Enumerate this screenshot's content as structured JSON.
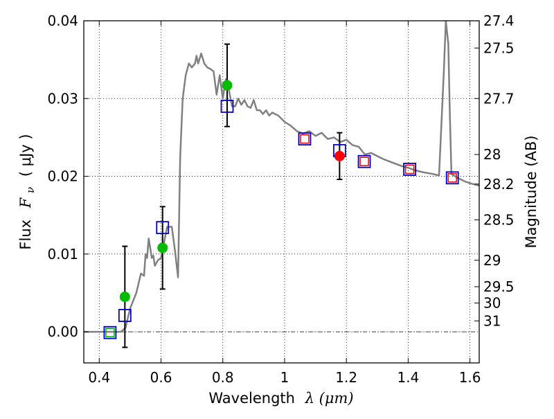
{
  "chart_data": {
    "type": "scatter",
    "title": "",
    "xlabel": "Wavelength",
    "xlabel_math": "λ (μm)",
    "ylabel": "Flux",
    "ylabel_math": "F",
    "ylabel_sub": "ν",
    "ylabel_unit": "( μJy )",
    "y2label": "Magnitude (AB)",
    "xlim": [
      0.35,
      1.63
    ],
    "ylim": [
      -0.004,
      0.04
    ],
    "x_ticks": [
      0.4,
      0.6,
      0.8,
      1.0,
      1.2,
      1.4,
      1.6
    ],
    "x_tick_labels": [
      "0.4",
      "0.6",
      "0.8",
      "1",
      "1.2",
      "1.4",
      "1.6"
    ],
    "y_ticks": [
      0.0,
      0.01,
      0.02,
      0.03,
      0.04
    ],
    "y_tick_labels": [
      "0.00",
      "0.01",
      "0.02",
      "0.03",
      "0.04"
    ],
    "y2_ticks": [
      {
        "label": "27.4",
        "flux": 0.04
      },
      {
        "label": "27.5",
        "flux": 0.0365
      },
      {
        "label": "27.7",
        "flux": 0.03
      },
      {
        "label": "28",
        "flux": 0.0228
      },
      {
        "label": "28.2",
        "flux": 0.019
      },
      {
        "label": "28.5",
        "flux": 0.0144
      },
      {
        "label": "29",
        "flux": 0.0092
      },
      {
        "label": "29.5",
        "flux": 0.0058
      },
      {
        "label": "30",
        "flux": 0.0037
      },
      {
        "label": "31",
        "flux": 0.0014
      }
    ],
    "grid": true,
    "reference_line": {
      "y": 0.0,
      "style": "dash-dot"
    },
    "colors": {
      "model": "#808080",
      "green_points": "#00bb00",
      "red_points": "#ff0000",
      "blue_squares": "#0000cc",
      "red_squares": "#ee0000",
      "green_squares": "#00aa00",
      "errorbars": "#000000"
    },
    "model_spectrum": [
      [
        0.35,
        0.0
      ],
      [
        0.47,
        0.0
      ],
      [
        0.485,
        0.0005
      ],
      [
        0.5,
        0.003
      ],
      [
        0.52,
        0.005
      ],
      [
        0.535,
        0.0075
      ],
      [
        0.545,
        0.0072
      ],
      [
        0.55,
        0.01
      ],
      [
        0.555,
        0.0095
      ],
      [
        0.56,
        0.012
      ],
      [
        0.565,
        0.0108
      ],
      [
        0.57,
        0.0095
      ],
      [
        0.575,
        0.0098
      ],
      [
        0.58,
        0.0085
      ],
      [
        0.59,
        0.0092
      ],
      [
        0.6,
        0.0095
      ],
      [
        0.62,
        0.0135
      ],
      [
        0.635,
        0.0135
      ],
      [
        0.645,
        0.0105
      ],
      [
        0.655,
        0.007
      ],
      [
        0.662,
        0.0225
      ],
      [
        0.67,
        0.03
      ],
      [
        0.68,
        0.033
      ],
      [
        0.69,
        0.0345
      ],
      [
        0.7,
        0.034
      ],
      [
        0.71,
        0.0345
      ],
      [
        0.715,
        0.0355
      ],
      [
        0.72,
        0.0345
      ],
      [
        0.73,
        0.0358
      ],
      [
        0.74,
        0.0345
      ],
      [
        0.75,
        0.034
      ],
      [
        0.76,
        0.0338
      ],
      [
        0.77,
        0.0335
      ],
      [
        0.78,
        0.0305
      ],
      [
        0.79,
        0.033
      ],
      [
        0.8,
        0.03
      ],
      [
        0.81,
        0.0325
      ],
      [
        0.82,
        0.031
      ],
      [
        0.83,
        0.029
      ],
      [
        0.84,
        0.029
      ],
      [
        0.85,
        0.03
      ],
      [
        0.86,
        0.0292
      ],
      [
        0.87,
        0.0298
      ],
      [
        0.88,
        0.029
      ],
      [
        0.89,
        0.0288
      ],
      [
        0.9,
        0.0298
      ],
      [
        0.91,
        0.0285
      ],
      [
        0.92,
        0.0285
      ],
      [
        0.93,
        0.028
      ],
      [
        0.94,
        0.0285
      ],
      [
        0.95,
        0.0278
      ],
      [
        0.96,
        0.0282
      ],
      [
        0.98,
        0.0278
      ],
      [
        1.0,
        0.027
      ],
      [
        1.02,
        0.0265
      ],
      [
        1.04,
        0.0258
      ],
      [
        1.06,
        0.0255
      ],
      [
        1.08,
        0.0258
      ],
      [
        1.1,
        0.0252
      ],
      [
        1.12,
        0.0256
      ],
      [
        1.14,
        0.0248
      ],
      [
        1.16,
        0.025
      ],
      [
        1.18,
        0.0244
      ],
      [
        1.2,
        0.0247
      ],
      [
        1.22,
        0.024
      ],
      [
        1.24,
        0.0238
      ],
      [
        1.26,
        0.0228
      ],
      [
        1.28,
        0.023
      ],
      [
        1.3,
        0.0226
      ],
      [
        1.32,
        0.0222
      ],
      [
        1.34,
        0.0219
      ],
      [
        1.36,
        0.0216
      ],
      [
        1.38,
        0.0213
      ],
      [
        1.4,
        0.0211
      ],
      [
        1.42,
        0.0208
      ],
      [
        1.45,
        0.0205
      ],
      [
        1.48,
        0.0203
      ],
      [
        1.5,
        0.0201
      ],
      [
        1.515,
        0.033
      ],
      [
        1.522,
        0.04
      ],
      [
        1.53,
        0.037
      ],
      [
        1.535,
        0.028
      ],
      [
        1.54,
        0.0203
      ],
      [
        1.56,
        0.0198
      ],
      [
        1.58,
        0.0194
      ],
      [
        1.6,
        0.0191
      ],
      [
        1.63,
        0.0188
      ]
    ],
    "observed_points": [
      {
        "x": 0.483,
        "y": 0.0045,
        "err": 0.0065,
        "color": "green"
      },
      {
        "x": 0.605,
        "y": 0.0108,
        "err": 0.0053,
        "color": "green"
      },
      {
        "x": 0.814,
        "y": 0.0317,
        "err": 0.0053,
        "color": "green"
      },
      {
        "x": 1.178,
        "y": 0.0226,
        "err": 0.003,
        "color": "red"
      }
    ],
    "synthetic_squares": [
      {
        "x": 0.435,
        "y": -0.0001,
        "inner": "green"
      },
      {
        "x": 0.483,
        "y": 0.0021,
        "inner": null
      },
      {
        "x": 0.605,
        "y": 0.0134,
        "inner": null
      },
      {
        "x": 0.814,
        "y": 0.029,
        "inner": null
      },
      {
        "x": 1.065,
        "y": 0.0248,
        "inner": "red"
      },
      {
        "x": 1.178,
        "y": 0.0233,
        "inner": null
      },
      {
        "x": 1.258,
        "y": 0.0219,
        "inner": "red"
      },
      {
        "x": 1.405,
        "y": 0.0209,
        "inner": "red"
      },
      {
        "x": 1.543,
        "y": 0.0198,
        "inner": "red"
      }
    ]
  }
}
